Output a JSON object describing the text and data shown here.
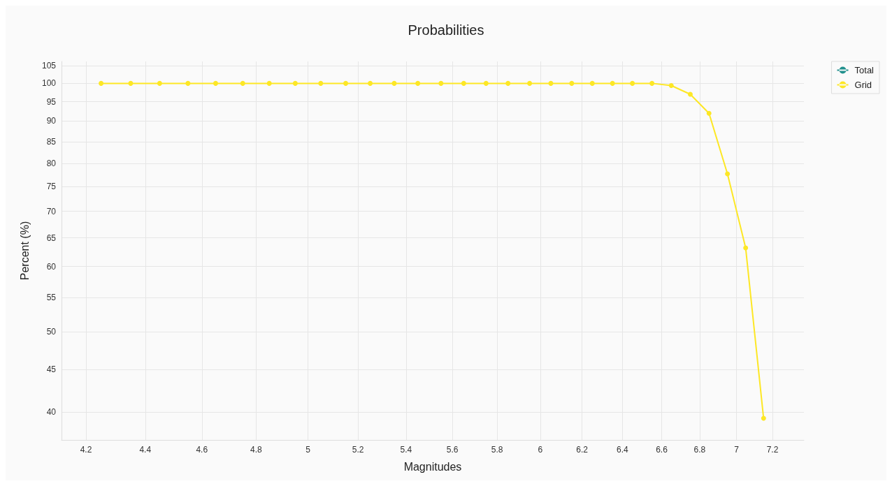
{
  "chart_data": {
    "type": "line",
    "title": "Probabilities",
    "xlabel": "Magnitudes",
    "ylabel": "Percent (%)",
    "log": "xy",
    "marker": "circle",
    "grid": true,
    "legend": "top right",
    "x": [
      4.25,
      4.35,
      4.45,
      4.55,
      4.65,
      4.75,
      4.85,
      4.95,
      5.05,
      5.15,
      5.25,
      5.35,
      5.45,
      5.55,
      5.65,
      5.75,
      5.85,
      5.95,
      6.05,
      6.15,
      6.25,
      6.35,
      6.45,
      6.55,
      6.65,
      6.75,
      6.85,
      6.95,
      7.05,
      7.15
    ],
    "xlim": [
      4.12,
      7.38
    ],
    "xticks": [
      4.2,
      4.4,
      4.6,
      4.8,
      5,
      5.2,
      5.4,
      5.6,
      5.8,
      6,
      6.2,
      6.4,
      6.6,
      6.8,
      7,
      7.2
    ],
    "ylim": [
      37,
      106.3
    ],
    "yticks": [
      40,
      45,
      50,
      55,
      60,
      65,
      70,
      75,
      80,
      85,
      90,
      95,
      100,
      105
    ],
    "series": [
      {
        "name": "Total",
        "color": "#21908d",
        "values": [
          null,
          null,
          null,
          null,
          null,
          null,
          null,
          null,
          null,
          null,
          null,
          null,
          null,
          null,
          null,
          null,
          null,
          null,
          null,
          null,
          null,
          null,
          null,
          null,
          null,
          null,
          null,
          null,
          null,
          null
        ]
      },
      {
        "name": "Grid",
        "color": "#fde725",
        "values": [
          100,
          100,
          100,
          100,
          100,
          100,
          100,
          100,
          100,
          100,
          100,
          100,
          100,
          100,
          100,
          100,
          100,
          100,
          100,
          100,
          100,
          100,
          100,
          100,
          99.4,
          97,
          92,
          77.7,
          63.2,
          39.3
        ]
      }
    ]
  }
}
